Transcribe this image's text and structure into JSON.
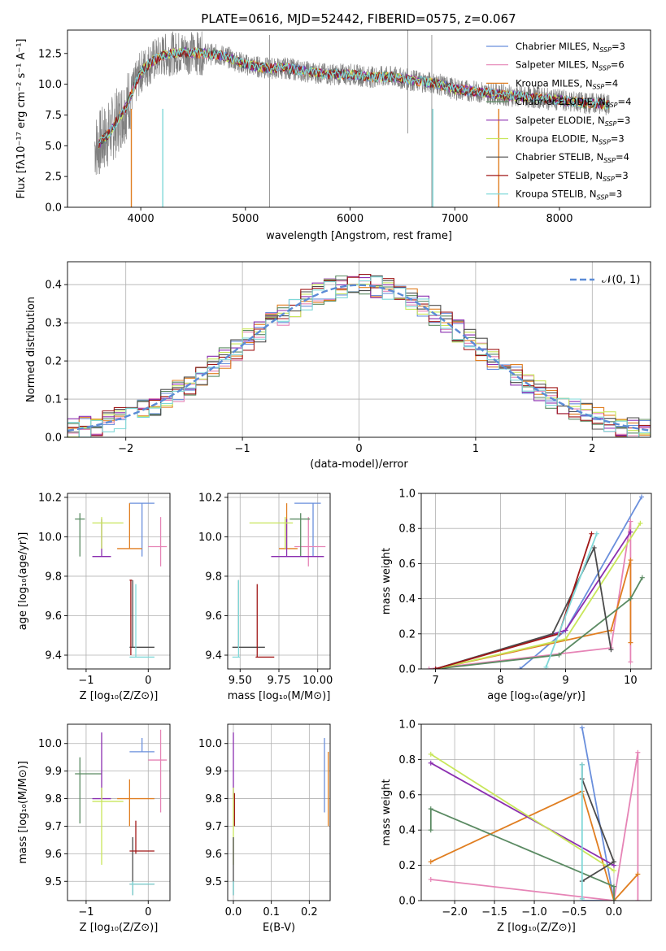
{
  "colors": {
    "Chabrier MILES": "#6a8fdc",
    "Salpeter MILES": "#e684b6",
    "Kroupa MILES": "#e07e21",
    "Chabrier ELODIE": "#5a8a62",
    "Salpeter ELODIE": "#8b2fb0",
    "Kroupa ELODIE": "#c8e65a",
    "Chabrier STELIB": "#4b4b4b",
    "Salpeter STELIB": "#a01818",
    "Kroupa STELIB": "#7fd8d8",
    "data": "#808080",
    "normal": "#5b8bd6"
  },
  "chart_data": [
    {
      "id": "spectrum",
      "type": "line",
      "title": "PLATE=0616, MJD=52442, FIBERID=0575, z=0.067",
      "xlabel": "wavelength [Angstrom, rest frame]",
      "ylabel": "Flux [fλ10⁻¹⁷ erg cm⁻² s⁻¹ A⁻¹]",
      "xlim": [
        3300,
        8870
      ],
      "ylim": [
        0,
        14.4
      ],
      "xticks": [
        "4000",
        "5000",
        "6000",
        "7000",
        "8000"
      ],
      "yticks": [
        "0.0",
        "2.5",
        "5.0",
        "7.5",
        "10.0",
        "12.5"
      ],
      "legend": [
        {
          "name": "Chabrier MILES",
          "n": "3"
        },
        {
          "name": "Salpeter MILES",
          "n": "6"
        },
        {
          "name": "Kroupa MILES",
          "n": "4"
        },
        {
          "name": "Chabrier ELODIE",
          "n": "4"
        },
        {
          "name": "Salpeter ELODIE",
          "n": "3"
        },
        {
          "name": "Kroupa ELODIE",
          "n": "3"
        },
        {
          "name": "Chabrier STELIB",
          "n": "4"
        },
        {
          "name": "Salpeter STELIB",
          "n": "3"
        },
        {
          "name": "Kroupa STELIB",
          "n": "3"
        }
      ],
      "legend_placement": "top-right",
      "nssp_label": "N",
      "nssp_sub": "SSP",
      "continuum": {
        "x": [
          3580,
          3700,
          3850,
          3950,
          4000,
          4100,
          4200,
          4300,
          4400,
          4600,
          4800,
          5000,
          5200,
          5400,
          5600,
          5800,
          6000,
          6200,
          6400,
          6600,
          6800,
          7000,
          7200,
          7400,
          7600,
          7800,
          8000,
          8200,
          8400,
          8500
        ],
        "y": [
          5.0,
          6.0,
          8.0,
          10.0,
          11.0,
          11.8,
          12.3,
          12.5,
          12.6,
          12.5,
          12.3,
          11.6,
          11.3,
          11.3,
          11.0,
          10.8,
          10.8,
          10.6,
          10.6,
          10.3,
          10.1,
          9.6,
          9.4,
          9.2,
          9.0,
          8.9,
          8.7,
          8.5,
          8.4,
          8.3
        ]
      }
    },
    {
      "id": "residuals",
      "type": "line",
      "xlabel": "(data-model)/error",
      "ylabel": "Normed distribution",
      "xlim": [
        -2.5,
        2.5
      ],
      "ylim": [
        0,
        0.46
      ],
      "xticks": [
        "−2",
        "−1",
        "0",
        "1",
        "2"
      ],
      "yticks": [
        "0.0",
        "0.1",
        "0.2",
        "0.3",
        "0.4"
      ],
      "legend": "𝒩(0, 1)",
      "legend_placement": "top-right",
      "bin_width": 0.1,
      "grid": true
    },
    {
      "id": "age-vs-Z",
      "type": "scatter",
      "xlabel": "Z [log₁₀(Z/Z⊙)]",
      "ylabel": "age  [log₁₀(age/yr)]",
      "xlim": [
        -1.3,
        0.35
      ],
      "ylim": [
        9.33,
        10.22
      ],
      "xticks": [
        "−1",
        "0"
      ],
      "xtick_values": [
        -1,
        0
      ],
      "yticks": [
        "9.4",
        "9.6",
        "9.8",
        "10.0",
        "10.2"
      ],
      "ytick_values": [
        9.4,
        9.6,
        9.8,
        10.0,
        10.2
      ],
      "points": [
        {
          "s": "Chabrier MILES",
          "x": -0.1,
          "xe": [
            -0.3,
            0.1
          ],
          "y": 10.17,
          "ye": [
            9.9,
            10.17
          ]
        },
        {
          "s": "Salpeter MILES",
          "x": 0.2,
          "xe": [
            0.0,
            0.3
          ],
          "y": 9.95,
          "ye": [
            9.85,
            10.1
          ]
        },
        {
          "s": "Kroupa MILES",
          "x": -0.3,
          "xe": [
            -0.5,
            -0.1
          ],
          "y": 9.94,
          "ye": [
            9.94,
            10.17
          ]
        },
        {
          "s": "Chabrier ELODIE",
          "x": -1.1,
          "xe": [
            -1.18,
            -1.02
          ],
          "y": 10.09,
          "ye": [
            9.9,
            10.12
          ]
        },
        {
          "s": "Salpeter ELODIE",
          "x": -0.75,
          "xe": [
            -0.9,
            -0.6
          ],
          "y": 9.9,
          "ye": [
            9.9,
            10.09
          ]
        },
        {
          "s": "Kroupa ELODIE",
          "x": -0.75,
          "xe": [
            -0.9,
            -0.4
          ],
          "y": 10.07,
          "ye": [
            9.94,
            10.1
          ]
        },
        {
          "s": "Chabrier STELIB",
          "x": -0.25,
          "xe": [
            -0.3,
            0.1
          ],
          "y": 9.44,
          "ye": [
            9.44,
            9.78
          ]
        },
        {
          "s": "Salpeter STELIB",
          "x": -0.28,
          "xe": [
            -0.3,
            -0.26
          ],
          "y": 9.78,
          "ye": [
            9.4,
            9.78
          ]
        },
        {
          "s": "Kroupa STELIB",
          "x": -0.2,
          "xe": [
            -0.3,
            0.1
          ],
          "y": 9.39,
          "ye": [
            9.39,
            9.76
          ]
        }
      ]
    },
    {
      "id": "age-vs-mass",
      "type": "scatter",
      "xlabel": "mass [log₁₀(M/M⊙)]",
      "xlim": [
        9.42,
        10.08
      ],
      "ylim": [
        9.33,
        10.22
      ],
      "xticks": [
        "9.50",
        "9.75",
        "10.00"
      ],
      "xtick_values": [
        9.5,
        9.75,
        10.0
      ],
      "yticks": [
        "9.4",
        "9.6",
        "9.8",
        "10.0",
        "10.2"
      ],
      "ytick_values": [
        9.4,
        9.6,
        9.8,
        10.0,
        10.2
      ],
      "points": [
        {
          "s": "Chabrier MILES",
          "x": 9.97,
          "xe": [
            9.85,
            10.02
          ],
          "y": 10.17,
          "ye": [
            9.9,
            10.17
          ]
        },
        {
          "s": "Salpeter MILES",
          "x": 9.94,
          "xe": [
            9.85,
            10.05
          ],
          "y": 9.95,
          "ye": [
            9.85,
            10.1
          ]
        },
        {
          "s": "Kroupa MILES",
          "x": 9.8,
          "xe": [
            9.75,
            9.87
          ],
          "y": 9.94,
          "ye": [
            9.94,
            10.17
          ]
        },
        {
          "s": "Chabrier ELODIE",
          "x": 9.89,
          "xe": [
            9.82,
            9.95
          ],
          "y": 10.09,
          "ye": [
            9.9,
            10.12
          ]
        },
        {
          "s": "Salpeter ELODIE",
          "x": 9.8,
          "xe": [
            9.7,
            10.04
          ],
          "y": 9.9,
          "ye": [
            9.9,
            10.09
          ]
        },
        {
          "s": "Kroupa ELODIE",
          "x": 9.79,
          "xe": [
            9.56,
            9.84
          ],
          "y": 10.07,
          "ye": [
            9.94,
            10.1
          ]
        },
        {
          "s": "Chabrier STELIB",
          "x": 9.49,
          "xe": [
            9.45,
            9.66
          ],
          "y": 9.44,
          "ye": [
            9.44,
            9.78
          ]
        },
        {
          "s": "Salpeter STELIB",
          "x": 9.61,
          "xe": [
            9.6,
            9.72
          ],
          "y": 9.39,
          "ye": [
            9.39,
            9.76
          ]
        },
        {
          "s": "Kroupa STELIB",
          "x": 9.49,
          "xe": [
            9.45,
            9.5
          ],
          "y": 9.39,
          "ye": [
            9.39,
            9.78
          ]
        }
      ]
    },
    {
      "id": "weight-vs-age",
      "type": "line",
      "xlabel": "age  [log₁₀(age/yr)]",
      "ylabel": "mass weight",
      "xlim": [
        6.78,
        10.32
      ],
      "ylim": [
        0,
        1
      ],
      "xticks": [
        "7",
        "8",
        "9",
        "10"
      ],
      "xtick_values": [
        7,
        8,
        9,
        10
      ],
      "yticks": [
        "0.0",
        "0.2",
        "0.4",
        "0.6",
        "0.8",
        "1.0"
      ],
      "ytick_values": [
        0,
        0.2,
        0.4,
        0.6,
        0.8,
        1.0
      ],
      "series": [
        {
          "s": "Chabrier MILES",
          "x": [
            8.3,
            9.0,
            10.17
          ],
          "y": [
            0.0,
            0.22,
            0.98
          ]
        },
        {
          "s": "Salpeter MILES",
          "x": [
            6.9,
            9.7,
            10.0,
            10.0
          ],
          "y": [
            0.0,
            0.12,
            0.84,
            0.04
          ]
        },
        {
          "s": "Kroupa MILES",
          "x": [
            7.0,
            9.7,
            10.0,
            10.0
          ],
          "y": [
            0.0,
            0.22,
            0.62,
            0.15
          ]
        },
        {
          "s": "Chabrier ELODIE",
          "x": [
            7.0,
            8.9,
            10.0,
            10.18
          ],
          "y": [
            0.0,
            0.08,
            0.4,
            0.52
          ]
        },
        {
          "s": "Salpeter ELODIE",
          "x": [
            7.0,
            9.0,
            10.0
          ],
          "y": [
            0.0,
            0.22,
            0.78
          ]
        },
        {
          "s": "Kroupa ELODIE",
          "x": [
            7.0,
            9.0,
            10.15
          ],
          "y": [
            0.0,
            0.17,
            0.83
          ]
        },
        {
          "s": "Chabrier STELIB",
          "x": [
            7.0,
            8.8,
            9.44,
            9.7
          ],
          "y": [
            0.0,
            0.2,
            0.69,
            0.11
          ]
        },
        {
          "s": "Salpeter STELIB",
          "x": [
            7.0,
            8.9,
            9.4
          ],
          "y": [
            0.0,
            0.2,
            0.77
          ]
        },
        {
          "s": "Kroupa STELIB",
          "x": [
            8.7,
            9.48
          ],
          "y": [
            0.01,
            0.77
          ]
        }
      ]
    },
    {
      "id": "mass-vs-Z",
      "type": "scatter",
      "xlabel": "Z [log₁₀(Z/Z⊙)]",
      "ylabel": "mass [log₁₀(M/M⊙)]",
      "xlim": [
        -1.3,
        0.35
      ],
      "ylim": [
        9.43,
        10.07
      ],
      "xticks": [
        "−1",
        "0"
      ],
      "xtick_values": [
        -1,
        0
      ],
      "yticks": [
        "9.5",
        "9.6",
        "9.7",
        "9.8",
        "9.9",
        "10.0"
      ],
      "ytick_values": [
        9.5,
        9.6,
        9.7,
        9.8,
        9.9,
        10.0
      ],
      "points": [
        {
          "s": "Chabrier MILES",
          "x": -0.1,
          "xe": [
            -0.3,
            0.1
          ],
          "y": 9.97,
          "ye": [
            9.97,
            10.02
          ]
        },
        {
          "s": "Salpeter MILES",
          "x": 0.2,
          "xe": [
            0.0,
            0.3
          ],
          "y": 9.94,
          "ye": [
            9.75,
            10.05
          ]
        },
        {
          "s": "Kroupa MILES",
          "x": -0.3,
          "xe": [
            -0.5,
            0.1
          ],
          "y": 9.8,
          "ye": [
            9.7,
            9.87
          ]
        },
        {
          "s": "Chabrier ELODIE",
          "x": -1.1,
          "xe": [
            -1.18,
            -0.75
          ],
          "y": 9.89,
          "ye": [
            9.71,
            9.95
          ]
        },
        {
          "s": "Salpeter ELODIE",
          "x": -0.75,
          "xe": [
            -0.9,
            -0.6
          ],
          "y": 9.8,
          "ye": [
            9.8,
            10.04
          ]
        },
        {
          "s": "Kroupa ELODIE",
          "x": -0.75,
          "xe": [
            -0.9,
            -0.4
          ],
          "y": 9.79,
          "ye": [
            9.56,
            9.84
          ]
        },
        {
          "s": "Chabrier STELIB",
          "x": -0.25,
          "xe": [
            -0.3,
            0.1
          ],
          "y": 9.49,
          "ye": [
            9.45,
            9.66
          ]
        },
        {
          "s": "Salpeter STELIB",
          "x": -0.2,
          "xe": [
            -0.3,
            0.1
          ],
          "y": 9.61,
          "ye": [
            9.6,
            9.72
          ]
        },
        {
          "s": "Kroupa STELIB",
          "x": -0.25,
          "xe": [
            -0.3,
            0.1
          ],
          "y": 9.49,
          "ye": [
            9.45,
            9.5
          ]
        }
      ]
    },
    {
      "id": "mass-vs-EBV",
      "type": "scatter",
      "xlabel": "E(B-V)",
      "xlim": [
        -0.015,
        0.255
      ],
      "ylim": [
        9.43,
        10.07
      ],
      "xticks": [
        "0.0",
        "0.1",
        "0.2"
      ],
      "xtick_values": [
        0,
        0.1,
        0.2
      ],
      "yticks": [
        "9.5",
        "9.6",
        "9.7",
        "9.8",
        "9.9",
        "10.0"
      ],
      "ytick_values": [
        9.5,
        9.6,
        9.7,
        9.8,
        9.9,
        10.0
      ],
      "points": [
        {
          "s": "Chabrier MILES",
          "x": 0.24,
          "ye": [
            9.75,
            10.02
          ]
        },
        {
          "s": "Kroupa MILES",
          "x": 0.25,
          "ye": [
            9.7,
            9.97
          ]
        },
        {
          "s": "Salpeter ELODIE",
          "x": 0.0,
          "ye": [
            9.8,
            10.04
          ]
        },
        {
          "s": "Kroupa ELODIE",
          "x": 0.0,
          "ye": [
            9.56,
            9.84
          ]
        },
        {
          "s": "Chabrier STELIB",
          "x": 0.0,
          "ye": [
            9.45,
            9.66
          ]
        },
        {
          "s": "Salpeter STELIB",
          "x": 0.003,
          "ye": [
            9.7,
            9.82
          ]
        },
        {
          "s": "Kroupa STELIB",
          "x": 0.0,
          "ye": [
            9.45,
            9.5
          ]
        }
      ]
    },
    {
      "id": "weight-vs-Z",
      "type": "line",
      "xlabel": "Z [log₁₀(Z/Z⊙)]",
      "ylabel": "mass weight",
      "xlim": [
        -2.42,
        0.47
      ],
      "ylim": [
        0,
        1
      ],
      "xticks": [
        "−2.0",
        "−1.5",
        "−1.0",
        "−0.5",
        "0.0"
      ],
      "xtick_values": [
        -2.0,
        -1.5,
        -1.0,
        -0.5,
        0.0
      ],
      "yticks": [
        "0.0",
        "0.2",
        "0.4",
        "0.6",
        "0.8",
        "1.0"
      ],
      "ytick_values": [
        0,
        0.2,
        0.4,
        0.6,
        0.8,
        1.0
      ],
      "series": [
        {
          "s": "Chabrier MILES",
          "x": [
            -0.4,
            0.0,
            -0.4
          ],
          "y": [
            0.98,
            0.0,
            0.0
          ]
        },
        {
          "s": "Salpeter MILES",
          "x": [
            -2.3,
            0.0,
            0.3,
            0.3
          ],
          "y": [
            0.12,
            0.0,
            0.84,
            0.0
          ]
        },
        {
          "s": "Kroupa MILES",
          "x": [
            -2.3,
            -0.4,
            0.0,
            0.3
          ],
          "y": [
            0.22,
            0.62,
            0.0,
            0.15
          ]
        },
        {
          "s": "Chabrier ELODIE",
          "x": [
            -2.3,
            -2.3,
            0.0,
            0.0
          ],
          "y": [
            0.4,
            0.52,
            0.08,
            0.0
          ]
        },
        {
          "s": "Salpeter ELODIE",
          "x": [
            -2.3,
            0.0
          ],
          "y": [
            0.78,
            0.2
          ]
        },
        {
          "s": "Kroupa ELODIE",
          "x": [
            -2.3,
            0.0
          ],
          "y": [
            0.83,
            0.17
          ]
        },
        {
          "s": "Chabrier STELIB",
          "x": [
            -0.4,
            0.0,
            -0.4,
            -0.4
          ],
          "y": [
            0.11,
            0.22,
            0.69,
            0.77
          ]
        },
        {
          "s": "Kroupa STELIB",
          "x": [
            -0.4,
            -0.4
          ],
          "y": [
            0.01,
            0.77
          ]
        }
      ]
    }
  ]
}
